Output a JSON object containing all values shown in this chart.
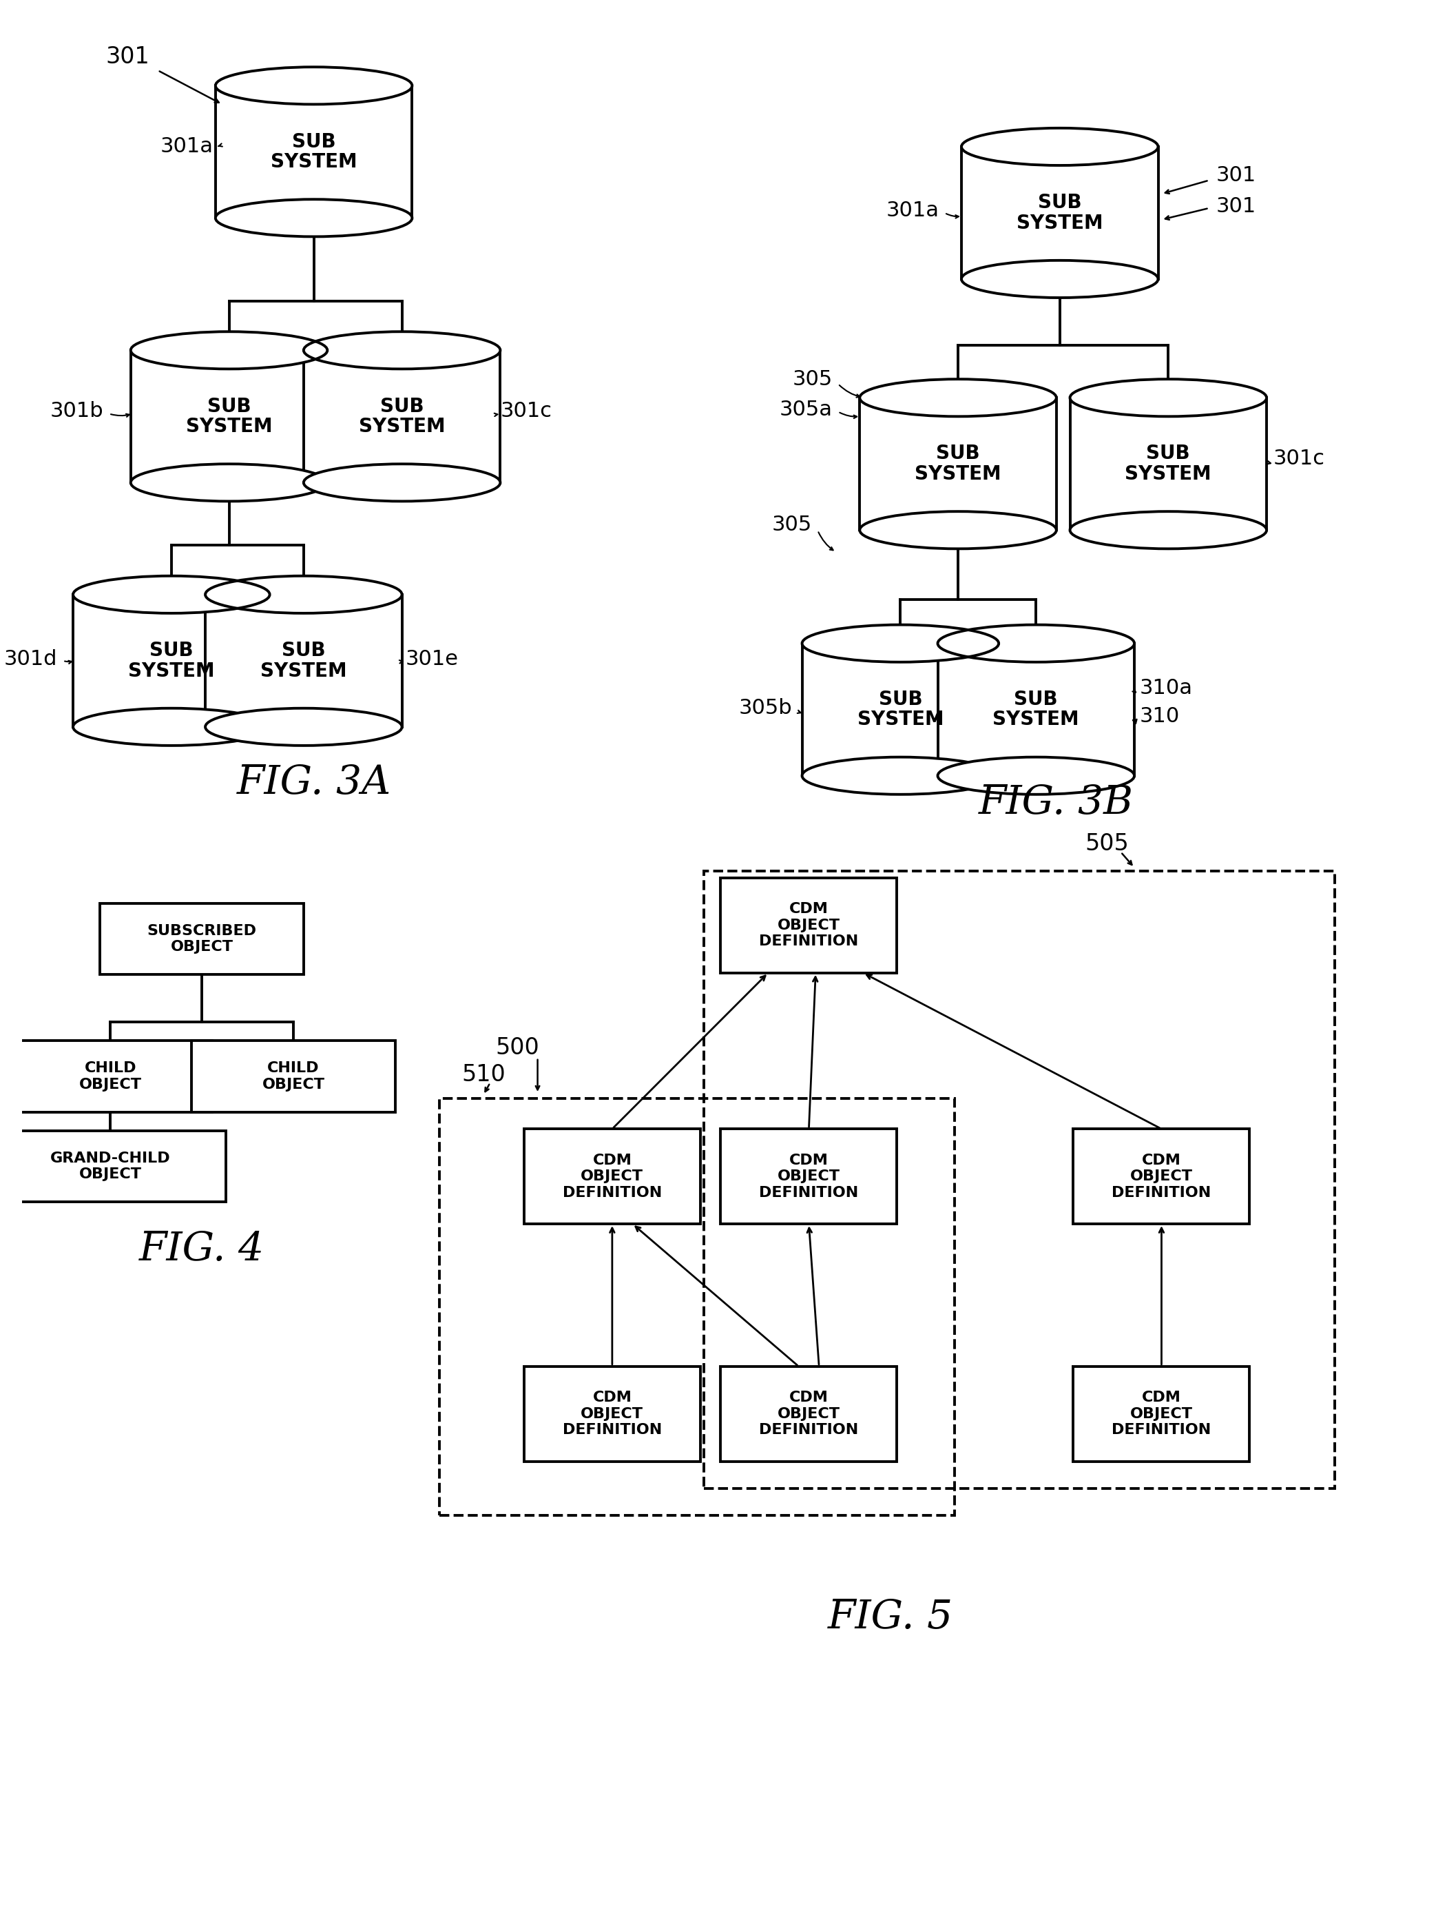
{
  "bg_color": "#ffffff",
  "line_color": "#000000",
  "fig3a_title": "FIG. 3A",
  "fig3b_title": "FIG. 3B",
  "fig4_title": "FIG. 4",
  "fig5_title": "FIG. 5"
}
